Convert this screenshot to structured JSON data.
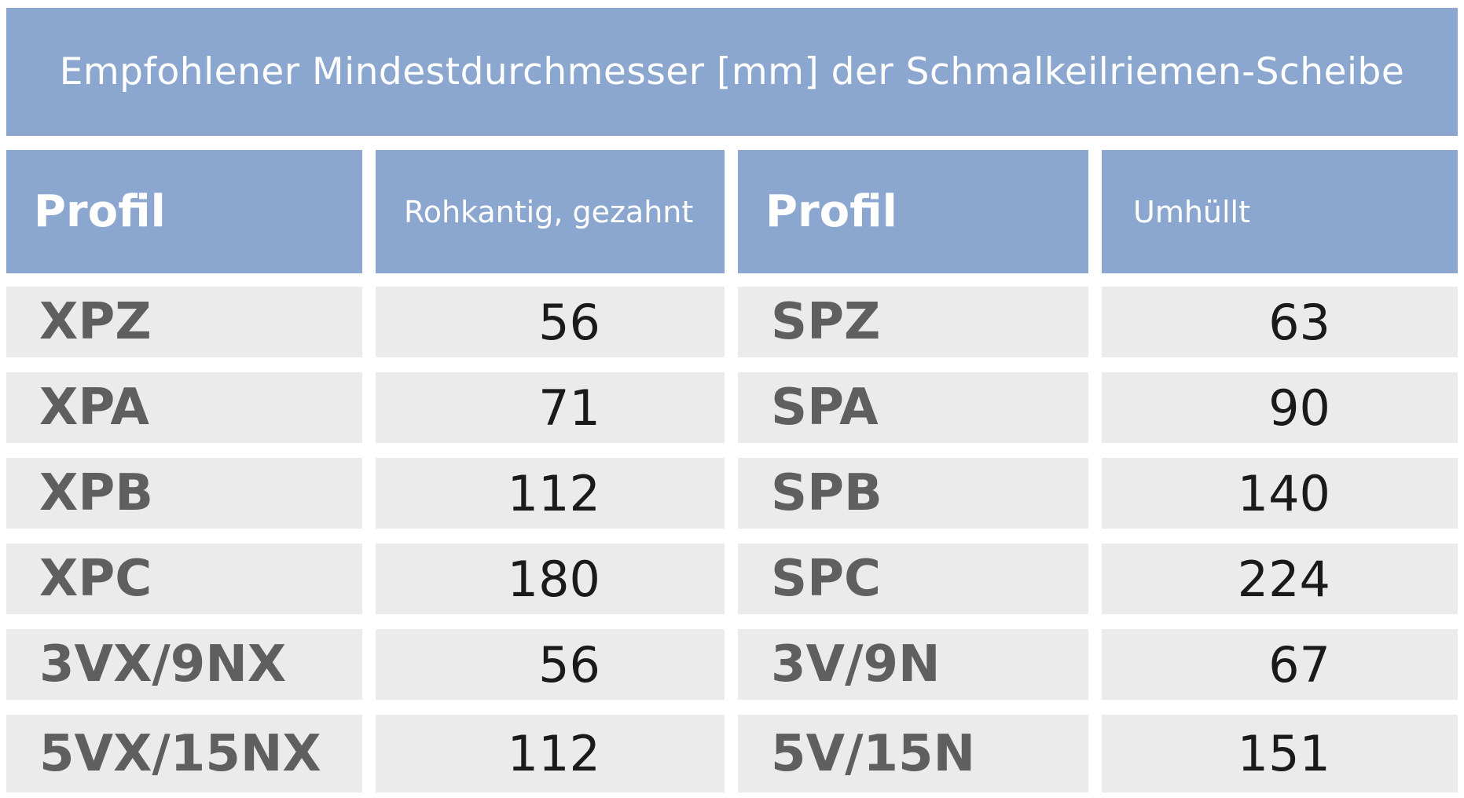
{
  "title": "Empfohlener Mindestdurchmesser [mm] der Schmalkeilriemen-Scheibe",
  "headers": {
    "profil_left": "Profil",
    "rohkantig": "Rohkantig, gezahnt",
    "profil_right": "Profil",
    "umhuellt": "Umhüllt"
  },
  "rows": [
    {
      "profil_left": "XPZ",
      "rohkantig": "56",
      "profil_right": "SPZ",
      "umhuellt": "63"
    },
    {
      "profil_left": "XPA",
      "rohkantig": "71",
      "profil_right": "SPA",
      "umhuellt": "90"
    },
    {
      "profil_left": "XPB",
      "rohkantig": "112",
      "profil_right": "SPB",
      "umhuellt": "140"
    },
    {
      "profil_left": "XPC",
      "rohkantig": "180",
      "profil_right": "SPC",
      "umhuellt": "224"
    },
    {
      "profil_left": "3VX/9NX",
      "rohkantig": "56",
      "profil_right": "3V/9N",
      "umhuellt": "67"
    },
    {
      "profil_left": "5VX/15NX",
      "rohkantig": "112",
      "profil_right": "5V/15N",
      "umhuellt": "151"
    }
  ],
  "colors": {
    "header_bg": "#8ba6cf",
    "row_bg": "#ebebeb",
    "profile_text": "#5f5f5f",
    "value_text": "#1a1a1a"
  }
}
